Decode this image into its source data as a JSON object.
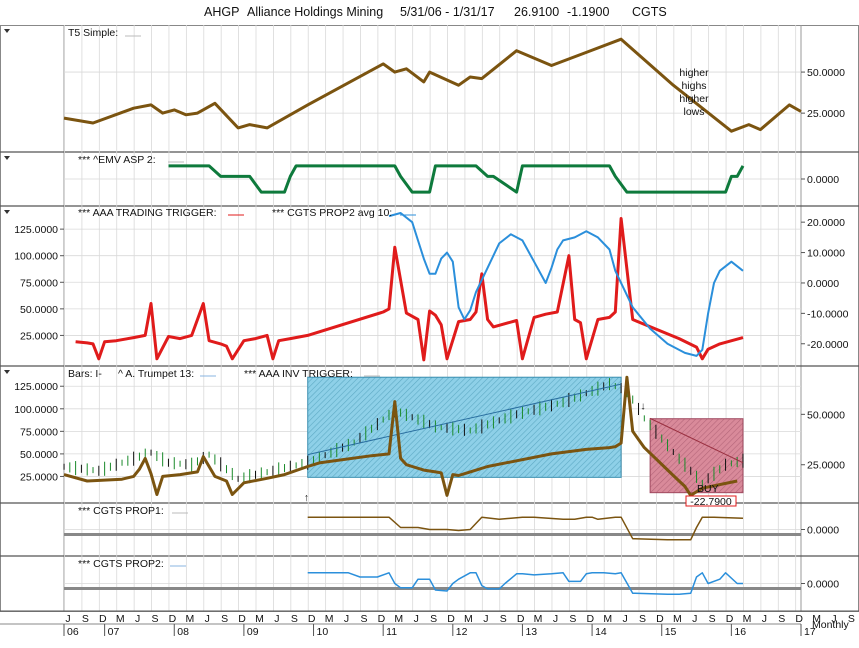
{
  "header": {
    "symbol": "AHGP",
    "name": "Alliance Holdings Mining",
    "range": "5/31/06 - 1/31/17",
    "price": "26.9100",
    "change": "-1.1900",
    "tag": "CGTS"
  },
  "periodicity": "Monthly",
  "colors": {
    "brown": "#7B5410",
    "green": "#0E7A3C",
    "red": "#E01B1B",
    "blue": "#2B8FDB",
    "cyan_fill": "#8ED0E8",
    "rose_fill": "#D98A9A",
    "grid": "#d9d9d9"
  },
  "chart_data": [
    {
      "name": "T5 Simple",
      "title": "T5 Simple:",
      "type": "line",
      "right_ticks": [
        "50.0000",
        "25.0000"
      ],
      "right_tick_values": [
        50,
        25
      ],
      "ylim": [
        5,
        75
      ],
      "x": [
        0,
        5,
        12,
        15,
        17,
        19,
        21,
        23,
        26,
        30,
        32,
        35,
        42,
        55,
        57,
        59,
        62,
        63,
        68,
        70,
        72,
        78,
        84,
        90,
        96,
        105,
        115,
        118,
        120,
        125,
        127
      ],
      "values": [
        22,
        19,
        28,
        30,
        25,
        27,
        24,
        25,
        31,
        16,
        18,
        16,
        30,
        55,
        50,
        52,
        44,
        50,
        42,
        47,
        46,
        63,
        54,
        62,
        70,
        42,
        14,
        18,
        15,
        30,
        26
      ],
      "annotation": [
        "higher",
        "highs",
        "higher",
        "lows"
      ]
    },
    {
      "name": "EMV ASP 2",
      "title": "***   ^EMV ASP 2:",
      "type": "line",
      "right_ticks": [
        "0.0000"
      ],
      "right_tick_values": [
        0
      ],
      "ylim": [
        -0.8,
        0.8
      ],
      "x": [
        18,
        25,
        27,
        32,
        34,
        38,
        39,
        40,
        57,
        58,
        60,
        63,
        64,
        71,
        73,
        74,
        78,
        79,
        80,
        94,
        95,
        97,
        114,
        115,
        116,
        117
      ],
      "values": [
        0.5,
        0.5,
        0.1,
        0.1,
        -0.5,
        -0.5,
        0.1,
        0.5,
        0.5,
        0.1,
        -0.5,
        -0.5,
        0.5,
        0.5,
        0.1,
        0.1,
        -0.5,
        0.5,
        0.5,
        0.5,
        0.1,
        -0.5,
        -0.5,
        0.1,
        0.1,
        0.5
      ]
    },
    {
      "name": "AAA TRADING TRIGGER",
      "title": "***   AAA TRADING TRIGGER:",
      "title2": "***   CGTS PROP2 avg 10:",
      "type": "line",
      "left_ticks": [
        "125.0000",
        "100.0000",
        "75.0000",
        "50.0000",
        "25.0000"
      ],
      "left_tick_values": [
        125,
        100,
        75,
        50,
        25
      ],
      "right_ticks": [
        "20.0000",
        "10.0000",
        "0.0000",
        "-10.0000",
        "-20.0000"
      ],
      "right_tick_values": [
        20,
        10,
        0,
        -10,
        -20
      ],
      "ylim_left": [
        0,
        143
      ],
      "ylim_right": [
        -26,
        24
      ],
      "series": [
        {
          "color": "red",
          "axis": "left",
          "x": [
            2,
            4,
            5,
            6,
            7,
            9,
            12,
            14,
            15,
            16,
            18,
            20,
            22,
            24,
            25,
            27,
            28,
            29,
            31,
            33,
            35,
            36,
            37,
            39,
            42,
            55,
            56,
            57,
            59,
            61,
            62,
            63,
            64,
            65,
            66,
            68,
            70,
            71,
            72,
            73,
            74,
            78,
            79,
            81,
            83,
            85,
            87,
            88,
            89,
            90,
            92,
            94,
            95,
            96,
            98,
            106,
            109,
            110,
            111,
            113,
            117
          ],
          "values": [
            19,
            18,
            17,
            3,
            19,
            20,
            23,
            25,
            55,
            3,
            24,
            22,
            25,
            55,
            20,
            17,
            15,
            3,
            20,
            22,
            25,
            3,
            20,
            22,
            25,
            47,
            50,
            108,
            46,
            40,
            2,
            48,
            44,
            35,
            3,
            38,
            40,
            47,
            83,
            40,
            33,
            39,
            3,
            42,
            45,
            47,
            100,
            40,
            37,
            3,
            40,
            42,
            47,
            135,
            40,
            22,
            14,
            3,
            12,
            17,
            23
          ]
        },
        {
          "color": "blue",
          "axis": "right",
          "x": [
            56,
            58,
            60,
            61,
            62,
            63,
            64,
            65,
            66,
            67,
            68,
            69,
            70,
            71,
            73,
            75,
            77,
            79,
            81,
            83,
            84,
            85,
            86,
            88,
            90,
            92,
            94,
            95,
            98,
            101,
            104,
            107,
            109,
            110,
            111,
            112,
            113,
            115,
            117
          ],
          "values": [
            22,
            23,
            20,
            14,
            8,
            3,
            3,
            8,
            10,
            7,
            -8,
            -12,
            -9,
            -3,
            5,
            13,
            16,
            14,
            7,
            0,
            5,
            11,
            14,
            15,
            17,
            15,
            11,
            4,
            -8,
            -15,
            -20,
            -23,
            -24,
            -22,
            -10,
            0,
            4,
            7,
            4
          ]
        }
      ]
    },
    {
      "name": "AAA INV TRIGGER",
      "title": "Bars: I-",
      "title2": "^ A. Trumpet 13:",
      "title3": "***   AAA INV TRIGGER:",
      "type": "bar",
      "left_ticks": [
        "125.0000",
        "100.0000",
        "75.0000",
        "50.0000",
        "25.0000"
      ],
      "left_tick_values": [
        125,
        100,
        75,
        50,
        25
      ],
      "right_ticks": [
        "50.0000",
        "25.0000"
      ],
      "right_tick_values": [
        50,
        25
      ],
      "ylim_left": [
        0,
        143
      ],
      "ylim_right": [
        8,
        72
      ],
      "trigger_line": {
        "x": [
          0,
          4,
          10,
          12,
          13,
          14,
          15,
          16,
          17,
          20,
          23,
          24,
          26,
          28,
          29,
          31,
          35,
          38,
          42,
          44,
          53,
          56,
          57,
          58,
          59,
          60,
          62,
          64,
          65,
          66,
          67,
          68,
          70,
          73,
          84,
          90,
          94,
          95,
          96,
          97,
          98,
          100,
          105,
          106,
          107,
          108,
          110,
          116
        ],
        "values": [
          27,
          20,
          22,
          25,
          33,
          45,
          28,
          5,
          25,
          27,
          30,
          47,
          25,
          20,
          5,
          18,
          23,
          27,
          36,
          40,
          48,
          50,
          108,
          45,
          38,
          36,
          32,
          30,
          29,
          4,
          27,
          26,
          30,
          36,
          50,
          55,
          57,
          58,
          62,
          135,
          75,
          57,
          26,
          20,
          14,
          4,
          12,
          20
        ]
      },
      "trumpet_cyan": {
        "x_range": [
          42,
          96
        ],
        "top_value": 135,
        "bottom_value": 24
      },
      "trumpet_rose": {
        "x_range": [
          101,
          117
        ],
        "top_value": 89,
        "bottom_value": 7
      },
      "buy_label": "BUY",
      "price_flag": "-22.7900",
      "bars_price": {
        "x": [
          0,
          6,
          12,
          15,
          18,
          22,
          25,
          30,
          36,
          42,
          50,
          57,
          64,
          70,
          78,
          86,
          94,
          97,
          100,
          103,
          106,
          110,
          114,
          117
        ],
        "values": [
          24,
          22,
          28,
          31,
          26,
          25,
          30,
          18,
          22,
          26,
          36,
          52,
          44,
          42,
          50,
          56,
          65,
          62,
          48,
          38,
          28,
          16,
          25,
          27
        ]
      }
    },
    {
      "name": "CGTS PROP1",
      "title": "***   CGTS PROP1:",
      "type": "line",
      "right_ticks": [
        "0.0000"
      ],
      "right_tick_values": [
        0
      ],
      "ylim": [
        -1,
        1
      ],
      "x": [
        42,
        50,
        56,
        58,
        61,
        63,
        66,
        68,
        70,
        71,
        72,
        75,
        79,
        81,
        86,
        88,
        90,
        91,
        92,
        95,
        96,
        98,
        104,
        106,
        108,
        109,
        110,
        112,
        117
      ],
      "values": [
        0.6,
        0.6,
        0.6,
        0.1,
        0.1,
        0.0,
        0.0,
        -0.05,
        0.0,
        0.3,
        0.6,
        0.5,
        0.6,
        0.6,
        0.5,
        0.5,
        0.6,
        0.6,
        0.5,
        0.6,
        0.6,
        -0.45,
        -0.5,
        -0.5,
        -0.5,
        0.1,
        0.6,
        0.6,
        0.55
      ]
    },
    {
      "name": "CGTS PROP2",
      "title": "***   CGTS PROP2:",
      "type": "line",
      "right_ticks": [
        "0.0000"
      ],
      "right_tick_values": [
        0
      ],
      "ylim": [
        -1,
        1
      ],
      "x": [
        42,
        49,
        51,
        54,
        56,
        57,
        58,
        60,
        61,
        63,
        64,
        66,
        67,
        68,
        70,
        71,
        72,
        73,
        75,
        76,
        78,
        79,
        81,
        84,
        86,
        87,
        89,
        90,
        91,
        93,
        95,
        96,
        98,
        104,
        106,
        108,
        109,
        110,
        111,
        113,
        114,
        116,
        117
      ],
      "values": [
        0.5,
        0.5,
        0.3,
        0.3,
        0.5,
        0.0,
        -0.2,
        -0.2,
        0.2,
        0.2,
        -0.3,
        -0.35,
        0.0,
        0.2,
        0.5,
        0.5,
        -0.1,
        -0.25,
        -0.25,
        0.0,
        0.45,
        0.45,
        0.4,
        0.45,
        0.5,
        0.1,
        0.1,
        0.45,
        0.5,
        0.5,
        0.45,
        0.5,
        -0.45,
        -0.5,
        -0.5,
        -0.45,
        0.3,
        0.5,
        0.0,
        0.2,
        0.5,
        0.0,
        0.0
      ]
    }
  ],
  "x_axis": {
    "months": [
      "J",
      "S",
      "D",
      "M",
      "J",
      "S",
      "D",
      "M",
      "J",
      "S",
      "D",
      "M",
      "J",
      "S",
      "D",
      "M",
      "J",
      "S",
      "D",
      "M",
      "J",
      "S",
      "D",
      "M",
      "J",
      "S",
      "D",
      "M",
      "J",
      "S",
      "D",
      "M",
      "J",
      "S",
      "D",
      "M",
      "J",
      "S",
      "D",
      "M",
      "J",
      "S",
      "D",
      "M",
      "J",
      "S",
      "D"
    ],
    "years": [
      "06",
      "07",
      "08",
      "09",
      "10",
      "11",
      "12",
      "13",
      "14",
      "15",
      "16",
      "17"
    ],
    "year_x": [
      0,
      7,
      19,
      31,
      43,
      55,
      67,
      79,
      91,
      103,
      115,
      127
    ]
  }
}
